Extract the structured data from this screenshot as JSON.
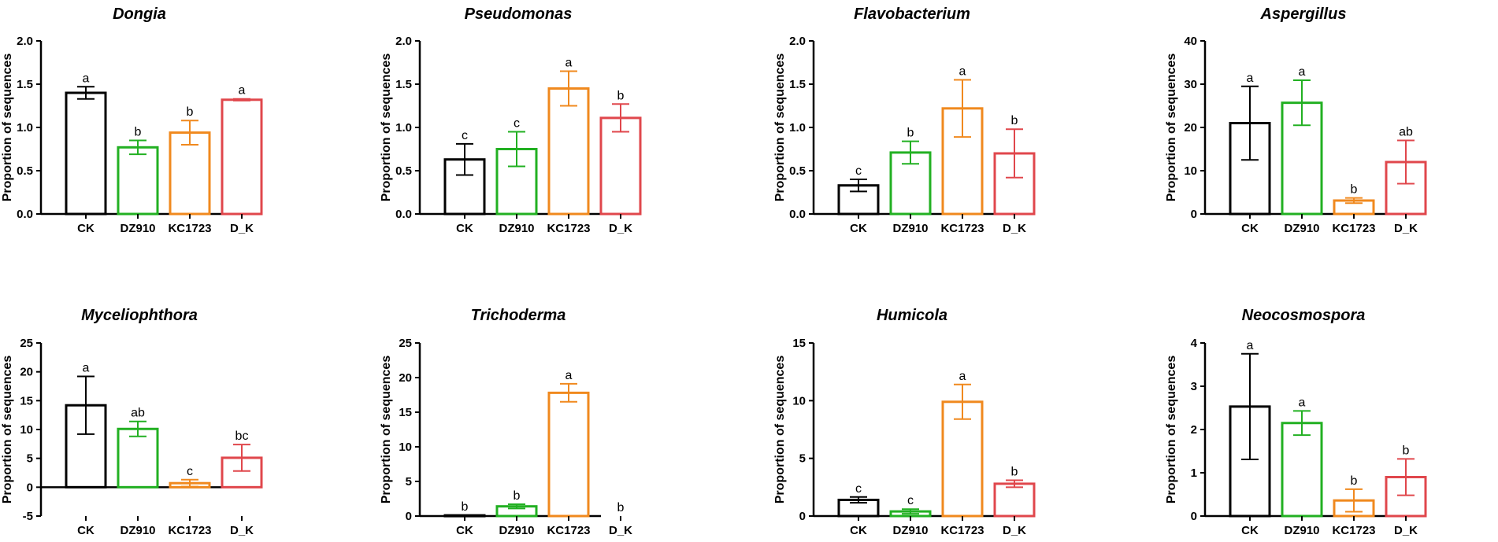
{
  "colors": {
    "CK": "#000000",
    "DZ910": "#22b022",
    "KC1723": "#f0891e",
    "D_K": "#e0474c"
  },
  "chart_data": [
    {
      "type": "bar",
      "title": "Dongia",
      "ylabel": "Proportion of sequences",
      "categories": [
        "CK",
        "DZ910",
        "KC1723",
        "D_K"
      ],
      "ylim": [
        0,
        2.0
      ],
      "yticks": [
        "0.0",
        "0.5",
        "1.0",
        "1.5",
        "2.0"
      ],
      "values": [
        1.4,
        0.77,
        0.94,
        1.32
      ],
      "errors": [
        0.07,
        0.08,
        0.14,
        0.01
      ],
      "letters": [
        "a",
        "b",
        "b",
        "a"
      ]
    },
    {
      "type": "bar",
      "title": "Pseudomonas",
      "ylabel": "Proportion of sequences",
      "categories": [
        "CK",
        "DZ910",
        "KC1723",
        "D_K"
      ],
      "ylim": [
        0,
        2.0
      ],
      "yticks": [
        "0.0",
        "0.5",
        "1.0",
        "1.5",
        "2.0"
      ],
      "values": [
        0.63,
        0.75,
        1.45,
        1.11
      ],
      "errors": [
        0.18,
        0.2,
        0.2,
        0.16
      ],
      "letters": [
        "c",
        "c",
        "a",
        "b"
      ]
    },
    {
      "type": "bar",
      "title": "Flavobacterium",
      "ylabel": "Proportion of sequences",
      "categories": [
        "CK",
        "DZ910",
        "KC1723",
        "D_K"
      ],
      "ylim": [
        0,
        2.0
      ],
      "yticks": [
        "0.0",
        "0.5",
        "1.0",
        "1.5",
        "2.0"
      ],
      "values": [
        0.33,
        0.71,
        1.22,
        0.7
      ],
      "errors": [
        0.07,
        0.13,
        0.33,
        0.28
      ],
      "letters": [
        "c",
        "b",
        "a",
        "b"
      ]
    },
    {
      "type": "bar",
      "title": "Aspergillus",
      "ylabel": "Proportion of sequences",
      "categories": [
        "CK",
        "DZ910",
        "KC1723",
        "D_K"
      ],
      "ylim": [
        0,
        40
      ],
      "yticks": [
        "0",
        "10",
        "20",
        "30",
        "40"
      ],
      "values": [
        21.0,
        25.7,
        3.1,
        12.0
      ],
      "errors": [
        8.5,
        5.2,
        0.6,
        5.0
      ],
      "letters": [
        "a",
        "a",
        "b",
        "ab"
      ]
    },
    {
      "type": "bar",
      "title": "Myceliophthora",
      "ylabel": "Proportion of sequences",
      "categories": [
        "CK",
        "DZ910",
        "KC1723",
        "D_K"
      ],
      "ylim": [
        -5,
        25
      ],
      "yticks": [
        "-5",
        "0",
        "5",
        "10",
        "15",
        "20",
        "25"
      ],
      "values": [
        14.2,
        10.1,
        0.7,
        5.1
      ],
      "errors": [
        5.0,
        1.3,
        0.6,
        2.3
      ],
      "letters": [
        "a",
        "ab",
        "c",
        "bc"
      ]
    },
    {
      "type": "bar",
      "title": "Trichoderma",
      "ylabel": "Proportion of sequences",
      "categories": [
        "CK",
        "DZ910",
        "KC1723",
        "D_K"
      ],
      "ylim": [
        0,
        25
      ],
      "yticks": [
        "0",
        "5",
        "10",
        "15",
        "20",
        "25"
      ],
      "values": [
        0.1,
        1.4,
        17.8,
        0.0
      ],
      "errors": [
        0.0,
        0.3,
        1.3,
        0.0
      ],
      "letters": [
        "b",
        "b",
        "a",
        "b"
      ]
    },
    {
      "type": "bar",
      "title": "Humicola",
      "ylabel": "Proportion of sequences",
      "categories": [
        "CK",
        "DZ910",
        "KC1723",
        "D_K"
      ],
      "ylim": [
        0,
        15
      ],
      "yticks": [
        "0",
        "5",
        "10",
        "15"
      ],
      "values": [
        1.4,
        0.4,
        9.9,
        2.8
      ],
      "errors": [
        0.25,
        0.2,
        1.5,
        0.3
      ],
      "letters": [
        "c",
        "c",
        "a",
        "b"
      ]
    },
    {
      "type": "bar",
      "title": "Neocosmospora",
      "ylabel": "Proportion of sequences",
      "categories": [
        "CK",
        "DZ910",
        "KC1723",
        "D_K"
      ],
      "ylim": [
        0,
        4
      ],
      "yticks": [
        "0",
        "1",
        "2",
        "3",
        "4"
      ],
      "values": [
        2.53,
        2.15,
        0.36,
        0.9
      ],
      "errors": [
        1.22,
        0.28,
        0.26,
        0.42
      ],
      "letters": [
        "a",
        "a",
        "b",
        "b"
      ]
    }
  ]
}
